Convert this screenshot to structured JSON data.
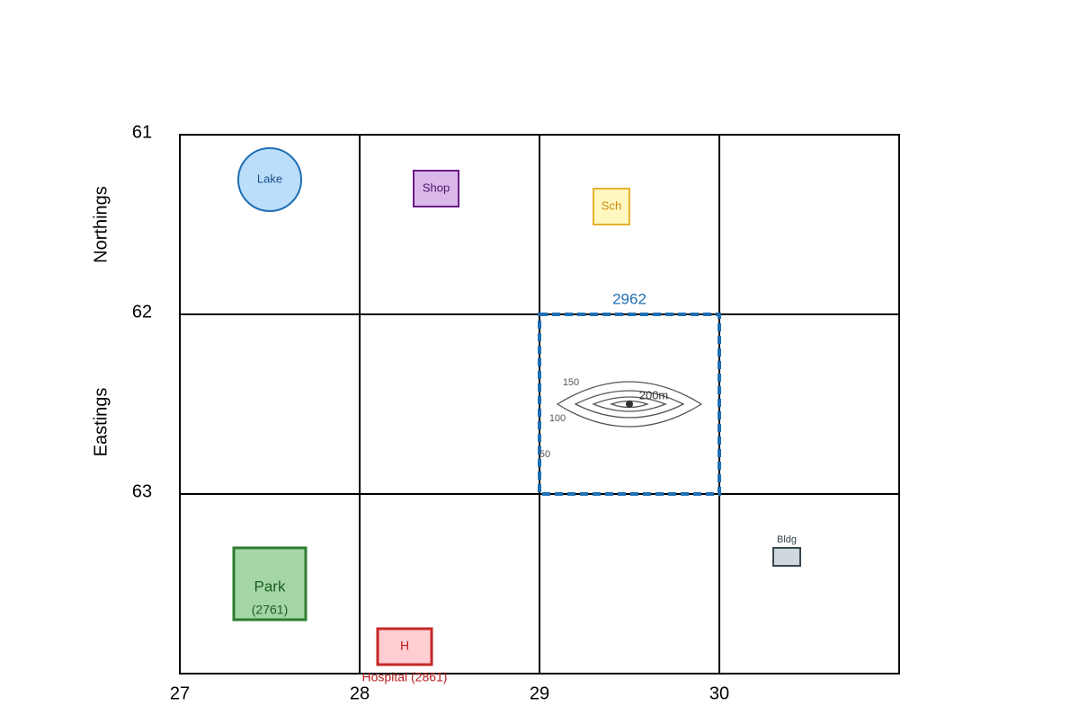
{
  "axes": {
    "northings_title": "Northings",
    "eastings_title": "Eastings",
    "northing_labels": [
      "61",
      "62",
      "63"
    ],
    "easting_labels": [
      "27",
      "28",
      "29",
      "30"
    ]
  },
  "highlight": {
    "label": "2962"
  },
  "contours": {
    "labels": [
      "150",
      "100",
      "50"
    ],
    "summit": "200m"
  },
  "features": {
    "lake": "Lake",
    "shop": "Shop",
    "school": "Sch",
    "building": "Bldg",
    "park": "Park",
    "park_ref": "(2761)",
    "hospital": "H",
    "hospital_label": "Hospital (2861)"
  }
}
